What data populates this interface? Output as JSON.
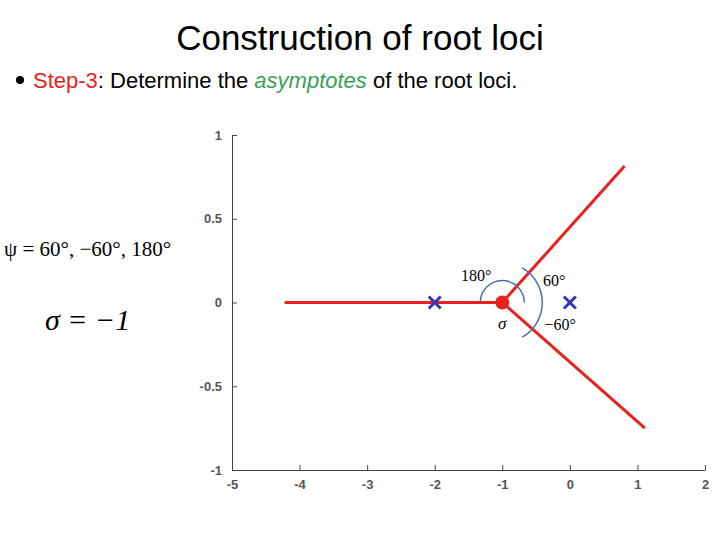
{
  "chart_data": {
    "type": "root_locus",
    "title": "Construction of root loci",
    "subtitle": [
      "Step-3",
      ": Determine the ",
      "asymptotes",
      " of the root loci."
    ],
    "annotations": [
      "ψ = 60°, −60°, 180°",
      "σ = −1",
      "σ"
    ],
    "angles": [
      {
        "value": 180,
        "label": "180°"
      },
      {
        "value": 60,
        "label": "60°"
      },
      {
        "value": -60,
        "label": "−60°"
      }
    ],
    "xlim": [
      -5,
      2
    ],
    "ylim": [
      -1,
      1
    ],
    "xticks": [
      -5,
      -4,
      -3,
      -2,
      -1,
      0,
      1,
      2
    ],
    "yticks": [
      -1,
      -0.5,
      0,
      0.5,
      1
    ],
    "grid": false,
    "series": [
      {
        "type": "line",
        "color": "#e8211c",
        "x": [
          -1,
          -4.22
        ],
        "values": [
          0,
          0
        ]
      },
      {
        "type": "line",
        "color": "#e8211c",
        "x": [
          -1,
          0.81
        ],
        "values": [
          0,
          0.815
        ]
      },
      {
        "type": "line",
        "color": "#e8211c",
        "x": [
          -1,
          1.11
        ],
        "values": [
          0,
          -0.75
        ]
      },
      {
        "type": "scatter",
        "marker": "x",
        "color": "#3535b5",
        "x": [
          -2,
          0
        ],
        "values": [
          0,
          0
        ]
      },
      {
        "type": "scatter",
        "marker": "circle",
        "color": "#e8211c",
        "x": [
          -1
        ],
        "values": [
          0
        ]
      }
    ]
  }
}
